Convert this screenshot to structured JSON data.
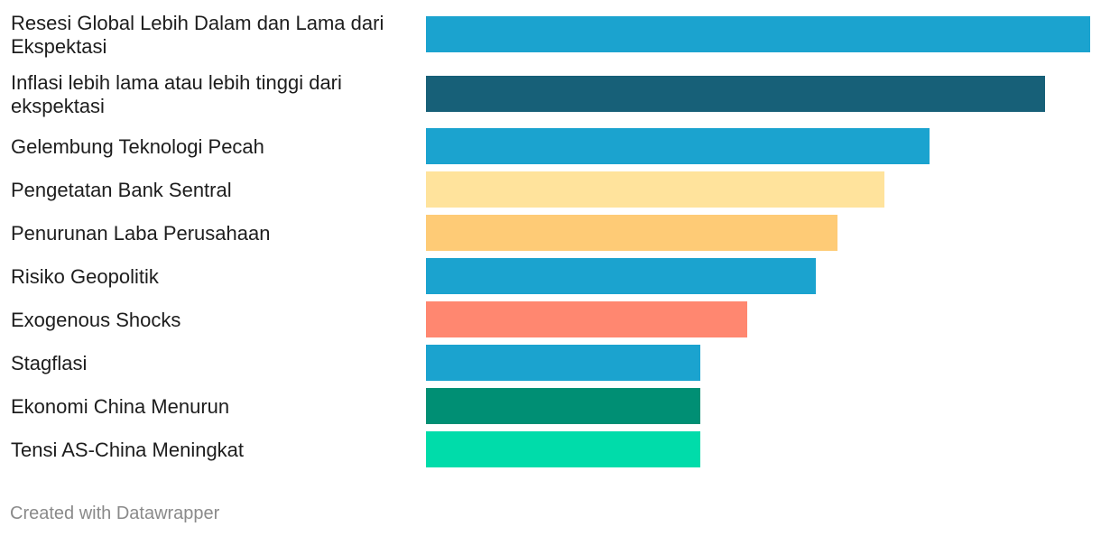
{
  "chart_data": {
    "type": "bar",
    "orientation": "horizontal",
    "categories": [
      "Resesi Global Lebih Dalam dan Lama dari Ekspektasi",
      "Inflasi lebih lama atau lebih tinggi dari ekspektasi",
      "Gelembung Teknologi Pecah",
      "Pengetatan Bank Sentral",
      "Penurunan Laba Perusahaan",
      "Risiko Geopolitik",
      "Exogenous Shocks",
      "Stagflasi",
      "Ekonomi China Menurun",
      "Tensi AS-China Meningkat"
    ],
    "values": [
      31,
      28.9,
      23.5,
      21.4,
      19.2,
      18.2,
      15,
      12.8,
      12.8,
      12.8
    ],
    "colors": [
      "#1ba3cf",
      "#176078",
      "#1ba3cf",
      "#ffe39c",
      "#fecb76",
      "#1ba3cf",
      "#ff8770",
      "#1ba3cf",
      "#008f74",
      "#00dcaa"
    ],
    "xlim": [
      0,
      31
    ],
    "grid": false,
    "legend": "none",
    "title": "",
    "xlabel": "",
    "ylabel": ""
  },
  "footer": {
    "credit": "Created with Datawrapper"
  }
}
